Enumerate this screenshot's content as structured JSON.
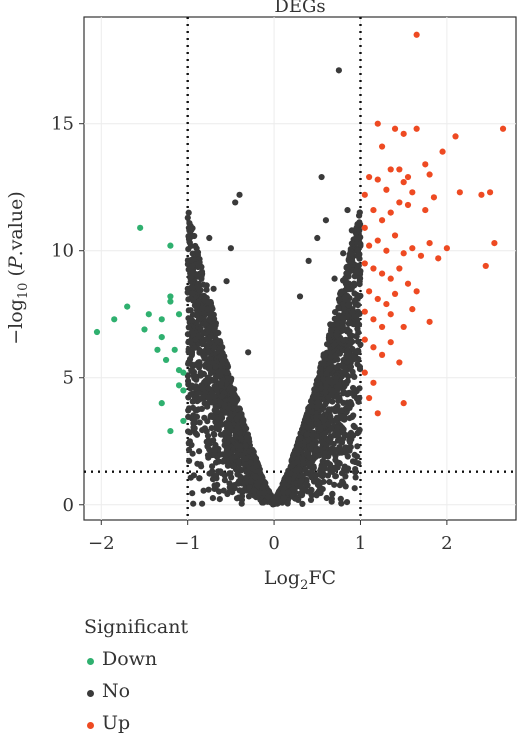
{
  "chart_data": {
    "type": "scatter",
    "title": "DEGs",
    "xlabel": "Log2FC",
    "ylabel": "-log10 (P.value)",
    "xlim": [
      -2.2,
      2.8
    ],
    "ylim": [
      -0.6,
      19.2
    ],
    "xticks": [
      -2,
      -1,
      0,
      1,
      2
    ],
    "yticks": [
      0,
      5,
      10,
      15
    ],
    "xtick_labels": [
      "−2",
      "−1",
      "0",
      "1",
      "2"
    ],
    "ytick_labels": [
      "0",
      "5",
      "10",
      "15"
    ],
    "thresholds": {
      "x": [
        -1,
        1
      ],
      "y": 1.3
    },
    "grid": true,
    "legend": {
      "title": "Significant",
      "placement": "bottom-left"
    },
    "colors": {
      "Down": "#2fb06f",
      "No": "#3a3a3a",
      "Up": "#ee4a22"
    },
    "series": [
      {
        "name": "Down",
        "points": [
          [
            -2.05,
            6.8
          ],
          [
            -1.85,
            7.3
          ],
          [
            -1.7,
            7.8
          ],
          [
            -1.55,
            10.9
          ],
          [
            -1.5,
            6.9
          ],
          [
            -1.45,
            7.5
          ],
          [
            -1.35,
            6.1
          ],
          [
            -1.3,
            7.3
          ],
          [
            -1.3,
            6.6
          ],
          [
            -1.25,
            5.7
          ],
          [
            -1.2,
            10.2
          ],
          [
            -1.2,
            8.0
          ],
          [
            -1.15,
            6.1
          ],
          [
            -1.1,
            5.3
          ],
          [
            -1.05,
            5.2
          ],
          [
            -1.1,
            4.7
          ],
          [
            -1.05,
            4.5
          ],
          [
            -1.3,
            4.0
          ],
          [
            -1.2,
            2.9
          ],
          [
            -1.05,
            3.3
          ],
          [
            -1.1,
            7.5
          ],
          [
            -1.2,
            8.2
          ]
        ]
      },
      {
        "name": "No",
        "points": [
          [
            0.75,
            17.1
          ],
          [
            -0.4,
            12.2
          ],
          [
            -0.45,
            11.9
          ],
          [
            -0.75,
            10.5
          ],
          [
            0.55,
            12.9
          ],
          [
            -0.5,
            10.1
          ],
          [
            0.4,
            9.6
          ],
          [
            0.6,
            11.2
          ],
          [
            0.85,
            11.6
          ],
          [
            -0.9,
            7.8
          ],
          [
            -0.85,
            5.2
          ],
          [
            -0.6,
            6.2
          ],
          [
            0.95,
            7.4
          ],
          [
            0.9,
            10.8
          ],
          [
            0.3,
            8.2
          ],
          [
            -0.3,
            6.0
          ],
          [
            0.7,
            8.9
          ],
          [
            -0.7,
            8.5
          ],
          [
            0.8,
            9.9
          ],
          [
            -0.95,
            6.8
          ],
          [
            0.5,
            10.5
          ],
          [
            0.65,
            7.1
          ],
          [
            -0.55,
            8.8
          ],
          [
            -0.8,
            4.4
          ]
        ]
      },
      {
        "name": "Up",
        "points": [
          [
            1.65,
            18.5
          ],
          [
            1.2,
            15.0
          ],
          [
            1.4,
            14.8
          ],
          [
            1.5,
            14.6
          ],
          [
            1.65,
            14.8
          ],
          [
            1.95,
            13.9
          ],
          [
            2.1,
            14.5
          ],
          [
            2.65,
            14.8
          ],
          [
            1.25,
            14.1
          ],
          [
            1.05,
            12.2
          ],
          [
            1.1,
            12.9
          ],
          [
            1.2,
            12.8
          ],
          [
            1.3,
            12.4
          ],
          [
            1.35,
            13.2
          ],
          [
            1.45,
            13.2
          ],
          [
            1.5,
            12.7
          ],
          [
            1.55,
            12.9
          ],
          [
            1.6,
            12.3
          ],
          [
            1.75,
            13.4
          ],
          [
            1.8,
            13.0
          ],
          [
            1.85,
            12.1
          ],
          [
            2.15,
            12.3
          ],
          [
            2.4,
            12.2
          ],
          [
            2.5,
            12.3
          ],
          [
            2.45,
            9.4
          ],
          [
            2.55,
            10.3
          ],
          [
            2.0,
            10.1
          ],
          [
            1.8,
            10.3
          ],
          [
            1.7,
            9.8
          ],
          [
            1.9,
            9.7
          ],
          [
            1.75,
            11.6
          ],
          [
            1.55,
            11.8
          ],
          [
            1.45,
            11.9
          ],
          [
            1.35,
            11.5
          ],
          [
            1.25,
            11.2
          ],
          [
            1.15,
            11.6
          ],
          [
            1.05,
            10.9
          ],
          [
            1.1,
            10.2
          ],
          [
            1.2,
            10.4
          ],
          [
            1.3,
            10.0
          ],
          [
            1.4,
            10.6
          ],
          [
            1.5,
            9.9
          ],
          [
            1.6,
            10.1
          ],
          [
            1.05,
            9.5
          ],
          [
            1.15,
            9.3
          ],
          [
            1.25,
            9.1
          ],
          [
            1.35,
            8.9
          ],
          [
            1.45,
            9.3
          ],
          [
            1.55,
            8.7
          ],
          [
            1.65,
            8.4
          ],
          [
            1.1,
            8.4
          ],
          [
            1.2,
            8.1
          ],
          [
            1.3,
            7.9
          ],
          [
            1.4,
            8.3
          ],
          [
            1.05,
            7.6
          ],
          [
            1.15,
            7.3
          ],
          [
            1.25,
            7.0
          ],
          [
            1.35,
            7.5
          ],
          [
            1.5,
            7.0
          ],
          [
            1.6,
            7.7
          ],
          [
            1.8,
            7.2
          ],
          [
            1.05,
            6.5
          ],
          [
            1.15,
            6.2
          ],
          [
            1.25,
            5.9
          ],
          [
            1.35,
            6.4
          ],
          [
            1.45,
            5.6
          ],
          [
            1.05,
            5.2
          ],
          [
            1.15,
            4.8
          ],
          [
            1.1,
            4.2
          ],
          [
            1.2,
            3.6
          ],
          [
            1.5,
            4.0
          ]
        ]
      }
    ]
  }
}
